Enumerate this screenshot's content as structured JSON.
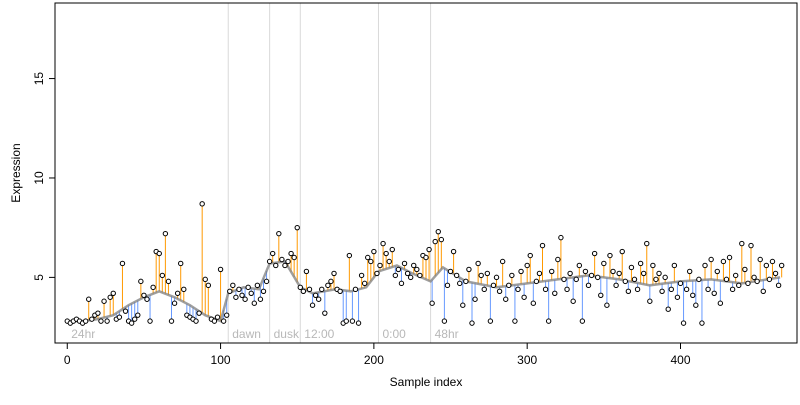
{
  "colors": {
    "up": "#ff9900",
    "down": "#6699ff",
    "trend": "#7f7f7f",
    "divider": "#d9d9d9",
    "segment_text": "#b8b8b8",
    "point_fill": "#ffffff",
    "point_stroke": "#000000"
  },
  "chart_data": {
    "type": "scatter",
    "title": "",
    "xlabel": "Sample index",
    "ylabel": "Expression",
    "xlim": [
      -8,
      476
    ],
    "ylim": [
      1.7,
      18.8
    ],
    "xticks": [
      0,
      100,
      200,
      300,
      400
    ],
    "yticks": [
      5,
      10,
      15
    ],
    "grid": false,
    "legend": "none",
    "segments": [
      {
        "label": "24hr",
        "start": 0
      },
      {
        "label": "dawn",
        "start": 105
      },
      {
        "label": "dusk",
        "start": 132
      },
      {
        "label": "12:00",
        "start": 152
      },
      {
        "label": "0:00",
        "start": 203
      },
      {
        "label": "48hr",
        "start": 237
      }
    ],
    "dividers": [
      105,
      132,
      152,
      203,
      237
    ],
    "trend": [
      [
        0,
        2.8
      ],
      [
        10,
        2.8
      ],
      [
        20,
        2.9
      ],
      [
        30,
        3.1
      ],
      [
        40,
        3.6
      ],
      [
        50,
        4.0
      ],
      [
        60,
        4.3
      ],
      [
        70,
        4.0
      ],
      [
        80,
        3.6
      ],
      [
        90,
        3.1
      ],
      [
        100,
        2.8
      ],
      [
        105,
        4.2
      ],
      [
        115,
        4.5
      ],
      [
        125,
        4.4
      ],
      [
        132,
        5.7
      ],
      [
        142,
        5.8
      ],
      [
        152,
        4.5
      ],
      [
        160,
        4.2
      ],
      [
        175,
        4.4
      ],
      [
        185,
        4.3
      ],
      [
        195,
        4.5
      ],
      [
        203,
        5.3
      ],
      [
        215,
        5.6
      ],
      [
        225,
        5.2
      ],
      [
        237,
        4.8
      ],
      [
        245,
        5.5
      ],
      [
        260,
        4.8
      ],
      [
        280,
        4.5
      ],
      [
        300,
        4.7
      ],
      [
        320,
        4.9
      ],
      [
        340,
        5.1
      ],
      [
        360,
        4.9
      ],
      [
        380,
        4.6
      ],
      [
        400,
        4.8
      ],
      [
        420,
        4.9
      ],
      [
        440,
        4.7
      ],
      [
        465,
        5.0
      ]
    ],
    "points": [
      [
        0,
        2.8
      ],
      [
        2,
        2.7
      ],
      [
        4,
        2.8
      ],
      [
        6,
        2.9
      ],
      [
        8,
        2.8
      ],
      [
        10,
        2.7
      ],
      [
        12,
        2.8
      ],
      [
        14,
        3.9
      ],
      [
        16,
        2.9
      ],
      [
        18,
        3.1
      ],
      [
        20,
        3.2
      ],
      [
        22,
        2.8
      ],
      [
        24,
        3.8
      ],
      [
        26,
        2.8
      ],
      [
        28,
        4.0
      ],
      [
        30,
        4.2
      ],
      [
        32,
        2.9
      ],
      [
        34,
        3.0
      ],
      [
        36,
        5.7
      ],
      [
        38,
        3.3
      ],
      [
        40,
        2.8
      ],
      [
        42,
        2.7
      ],
      [
        44,
        2.9
      ],
      [
        46,
        3.1
      ],
      [
        48,
        4.8
      ],
      [
        50,
        4.1
      ],
      [
        52,
        3.9
      ],
      [
        54,
        2.8
      ],
      [
        56,
        4.5
      ],
      [
        58,
        6.3
      ],
      [
        60,
        6.2
      ],
      [
        62,
        5.1
      ],
      [
        64,
        7.2
      ],
      [
        66,
        4.8
      ],
      [
        68,
        2.8
      ],
      [
        70,
        3.7
      ],
      [
        72,
        4.2
      ],
      [
        74,
        5.7
      ],
      [
        76,
        4.4
      ],
      [
        78,
        3.1
      ],
      [
        80,
        3.0
      ],
      [
        82,
        2.9
      ],
      [
        84,
        2.8
      ],
      [
        86,
        3.2
      ],
      [
        88,
        8.7
      ],
      [
        90,
        4.9
      ],
      [
        92,
        4.6
      ],
      [
        94,
        2.9
      ],
      [
        96,
        2.8
      ],
      [
        98,
        3.0
      ],
      [
        100,
        5.4
      ],
      [
        102,
        2.8
      ],
      [
        104,
        3.1
      ],
      [
        106,
        4.3
      ],
      [
        108,
        4.6
      ],
      [
        110,
        4.0
      ],
      [
        112,
        4.4
      ],
      [
        114,
        4.1
      ],
      [
        116,
        3.9
      ],
      [
        118,
        4.5
      ],
      [
        120,
        4.2
      ],
      [
        122,
        3.7
      ],
      [
        124,
        4.6
      ],
      [
        126,
        3.9
      ],
      [
        128,
        4.3
      ],
      [
        130,
        4.8
      ],
      [
        132,
        5.8
      ],
      [
        134,
        6.2
      ],
      [
        136,
        5.6
      ],
      [
        138,
        7.2
      ],
      [
        140,
        5.9
      ],
      [
        142,
        5.6
      ],
      [
        144,
        5.8
      ],
      [
        146,
        6.2
      ],
      [
        148,
        6.0
      ],
      [
        150,
        7.5
      ],
      [
        152,
        4.5
      ],
      [
        154,
        4.3
      ],
      [
        156,
        5.3
      ],
      [
        158,
        4.4
      ],
      [
        160,
        3.6
      ],
      [
        162,
        4.1
      ],
      [
        164,
        3.9
      ],
      [
        166,
        4.4
      ],
      [
        168,
        3.2
      ],
      [
        170,
        4.6
      ],
      [
        172,
        4.8
      ],
      [
        174,
        5.2
      ],
      [
        176,
        4.4
      ],
      [
        178,
        4.3
      ],
      [
        180,
        2.7
      ],
      [
        182,
        2.8
      ],
      [
        184,
        6.1
      ],
      [
        186,
        2.8
      ],
      [
        188,
        4.4
      ],
      [
        190,
        2.7
      ],
      [
        192,
        5.1
      ],
      [
        194,
        4.7
      ],
      [
        196,
        6.0
      ],
      [
        198,
        5.8
      ],
      [
        200,
        6.3
      ],
      [
        202,
        5.2
      ],
      [
        204,
        5.6
      ],
      [
        206,
        6.7
      ],
      [
        208,
        6.2
      ],
      [
        210,
        5.8
      ],
      [
        212,
        6.4
      ],
      [
        214,
        5.1
      ],
      [
        216,
        5.4
      ],
      [
        218,
        4.7
      ],
      [
        220,
        5.7
      ],
      [
        222,
        5.2
      ],
      [
        224,
        5.0
      ],
      [
        226,
        5.6
      ],
      [
        228,
        5.4
      ],
      [
        230,
        5.1
      ],
      [
        232,
        6.1
      ],
      [
        234,
        6.0
      ],
      [
        236,
        6.4
      ],
      [
        238,
        3.7
      ],
      [
        240,
        6.8
      ],
      [
        242,
        7.3
      ],
      [
        244,
        6.9
      ],
      [
        246,
        2.8
      ],
      [
        248,
        4.6
      ],
      [
        250,
        5.3
      ],
      [
        252,
        6.3
      ],
      [
        254,
        5.1
      ],
      [
        256,
        4.7
      ],
      [
        258,
        3.6
      ],
      [
        260,
        4.8
      ],
      [
        262,
        5.4
      ],
      [
        264,
        2.7
      ],
      [
        266,
        3.9
      ],
      [
        268,
        5.7
      ],
      [
        270,
        5.1
      ],
      [
        272,
        4.4
      ],
      [
        274,
        5.2
      ],
      [
        276,
        2.8
      ],
      [
        278,
        4.6
      ],
      [
        280,
        5.0
      ],
      [
        282,
        4.3
      ],
      [
        284,
        5.8
      ],
      [
        286,
        3.9
      ],
      [
        288,
        4.6
      ],
      [
        290,
        5.1
      ],
      [
        292,
        2.8
      ],
      [
        294,
        4.4
      ],
      [
        296,
        5.3
      ],
      [
        298,
        4.0
      ],
      [
        300,
        5.6
      ],
      [
        302,
        6.1
      ],
      [
        304,
        3.7
      ],
      [
        306,
        4.8
      ],
      [
        308,
        5.2
      ],
      [
        310,
        6.6
      ],
      [
        312,
        4.4
      ],
      [
        314,
        2.8
      ],
      [
        316,
        5.3
      ],
      [
        318,
        4.2
      ],
      [
        320,
        5.9
      ],
      [
        322,
        7.0
      ],
      [
        324,
        4.9
      ],
      [
        326,
        4.4
      ],
      [
        328,
        5.2
      ],
      [
        330,
        3.8
      ],
      [
        332,
        4.9
      ],
      [
        334,
        5.6
      ],
      [
        336,
        2.8
      ],
      [
        338,
        5.3
      ],
      [
        340,
        4.6
      ],
      [
        342,
        5.1
      ],
      [
        344,
        6.2
      ],
      [
        346,
        5.0
      ],
      [
        348,
        4.1
      ],
      [
        350,
        5.7
      ],
      [
        352,
        3.6
      ],
      [
        354,
        6.1
      ],
      [
        356,
        5.3
      ],
      [
        358,
        4.6
      ],
      [
        360,
        5.2
      ],
      [
        362,
        6.3
      ],
      [
        364,
        4.8
      ],
      [
        366,
        4.3
      ],
      [
        368,
        5.5
      ],
      [
        370,
        4.9
      ],
      [
        372,
        4.4
      ],
      [
        374,
        5.7
      ],
      [
        376,
        5.2
      ],
      [
        378,
        6.7
      ],
      [
        380,
        3.8
      ],
      [
        382,
        5.6
      ],
      [
        384,
        4.9
      ],
      [
        386,
        5.2
      ],
      [
        388,
        4.3
      ],
      [
        390,
        5.0
      ],
      [
        392,
        3.4
      ],
      [
        394,
        4.4
      ],
      [
        396,
        5.6
      ],
      [
        398,
        4.0
      ],
      [
        400,
        4.7
      ],
      [
        402,
        2.7
      ],
      [
        404,
        4.4
      ],
      [
        406,
        5.3
      ],
      [
        408,
        4.1
      ],
      [
        410,
        3.6
      ],
      [
        412,
        4.9
      ],
      [
        414,
        2.7
      ],
      [
        416,
        5.6
      ],
      [
        418,
        4.4
      ],
      [
        420,
        5.9
      ],
      [
        422,
        4.2
      ],
      [
        424,
        5.3
      ],
      [
        426,
        3.7
      ],
      [
        428,
        5.8
      ],
      [
        430,
        4.9
      ],
      [
        432,
        6.0
      ],
      [
        434,
        4.4
      ],
      [
        436,
        5.1
      ],
      [
        438,
        4.6
      ],
      [
        440,
        6.7
      ],
      [
        442,
        5.4
      ],
      [
        444,
        4.7
      ],
      [
        446,
        6.6
      ],
      [
        448,
        5.0
      ],
      [
        450,
        4.8
      ],
      [
        452,
        5.9
      ],
      [
        454,
        4.3
      ],
      [
        456,
        5.6
      ],
      [
        458,
        4.9
      ],
      [
        460,
        5.8
      ],
      [
        462,
        5.2
      ],
      [
        464,
        4.6
      ],
      [
        466,
        5.6
      ]
    ]
  }
}
